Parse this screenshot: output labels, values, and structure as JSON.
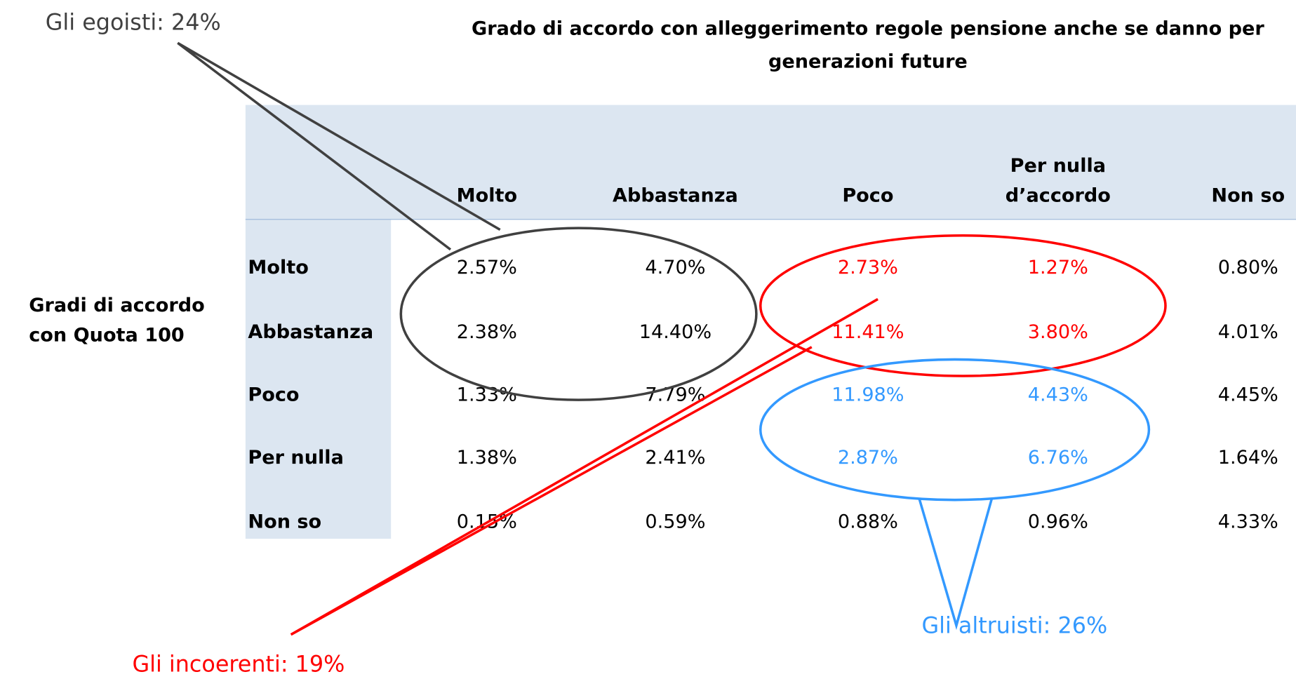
{
  "title": "Grado di accordo con alleggerimento regole pensione anche se danno per generazioni future",
  "row_axis_label": "Gradi di accordo con Quota 100",
  "table": {
    "columns": [
      "Molto",
      "Abbastanza",
      "Poco",
      "Per nulla d’accordo",
      "Non so"
    ],
    "rows": [
      {
        "label": "Molto",
        "cells": [
          "2.57%",
          "4.70%",
          "2.73%",
          "1.27%",
          "0.80%"
        ]
      },
      {
        "label": "Abbastanza",
        "cells": [
          "2.38%",
          "14.40%",
          "11.41%",
          "3.80%",
          "4.01%"
        ]
      },
      {
        "label": "Poco",
        "cells": [
          "1.33%",
          "7.79%",
          "11.98%",
          "4.43%",
          "4.45%"
        ]
      },
      {
        "label": "Per nulla",
        "cells": [
          "1.38%",
          "2.41%",
          "2.87%",
          "6.76%",
          "1.64%"
        ]
      },
      {
        "label": "Non so",
        "cells": [
          "0.15%",
          "0.59%",
          "0.88%",
          "0.96%",
          "4.33%"
        ]
      }
    ]
  },
  "callouts": [
    {
      "text": "Gli egoisti: 24%",
      "color": "#404040"
    },
    {
      "text": "Gli incoerenti: 19%",
      "color": "#ff0000"
    },
    {
      "text": "Gli altruisti: 26%",
      "color": "#3399ff"
    }
  ]
}
